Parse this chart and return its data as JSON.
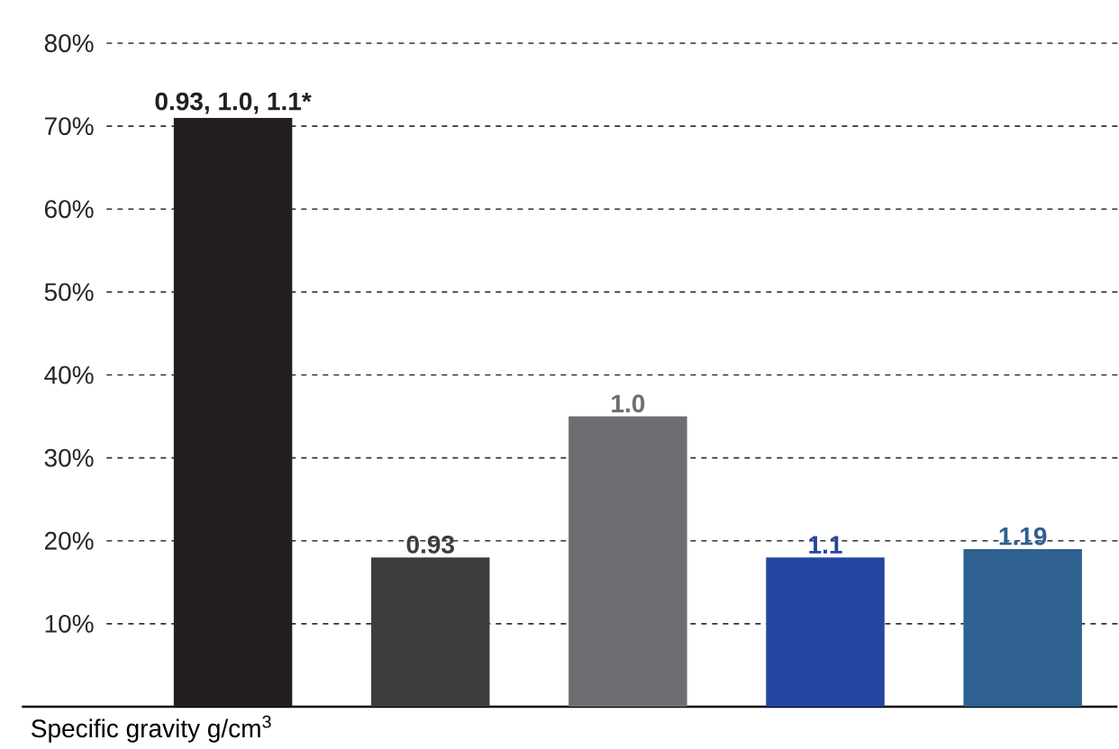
{
  "chart_data": {
    "type": "bar",
    "xlabel": "Specific gravity g/cm$^{3}$",
    "categories": [
      "0.93,  1.0, 1.1*",
      "0.93",
      "1.0",
      "1.1",
      "1.19"
    ],
    "values": [
      71,
      18,
      35,
      18,
      19
    ],
    "colors": [
      "#231f20",
      "#3d3d3d",
      "#6d6e71",
      "#2446a0",
      "#2e6090"
    ],
    "ylim": [
      0,
      80
    ],
    "yticks": [
      {
        "value": 10,
        "label": "10%"
      },
      {
        "value": 20,
        "label": "20%"
      },
      {
        "value": 30,
        "label": "30%"
      },
      {
        "value": 40,
        "label": "40%"
      },
      {
        "value": 50,
        "label": "50%"
      },
      {
        "value": 60,
        "label": "60%"
      },
      {
        "value": 70,
        "label": "70%"
      },
      {
        "value": 80,
        "label": "80%"
      }
    ],
    "grid": "y"
  }
}
